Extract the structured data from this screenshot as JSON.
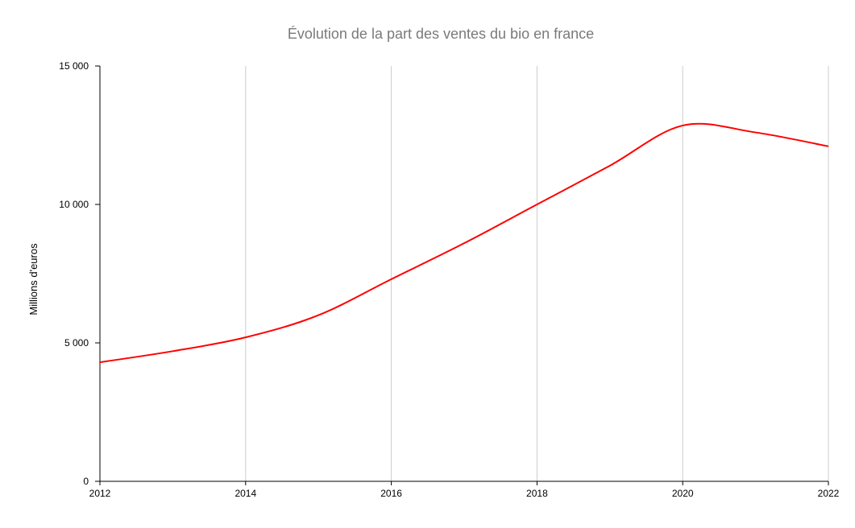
{
  "chart_data": {
    "type": "line",
    "title": "Évolution de la part des ventes du bio en france",
    "xlabel": "",
    "ylabel": "Millions d'euros",
    "x": [
      2012,
      2013,
      2014,
      2015,
      2016,
      2017,
      2018,
      2019,
      2020,
      2021,
      2022
    ],
    "x_tick_labels": [
      "2012",
      "2014",
      "2016",
      "2018",
      "2020",
      "2022"
    ],
    "y_tick_labels": [
      "0",
      "5 000",
      "10 000",
      "15 000"
    ],
    "xlim": [
      2012,
      2022
    ],
    "ylim": [
      0,
      15000
    ],
    "grid": "vertical",
    "legend": "none",
    "series": [
      {
        "color": "#ff0000",
        "values": [
          4300,
          4700,
          5200,
          6000,
          7300,
          8600,
          10000,
          11400,
          12850,
          12600,
          12100
        ]
      }
    ]
  }
}
